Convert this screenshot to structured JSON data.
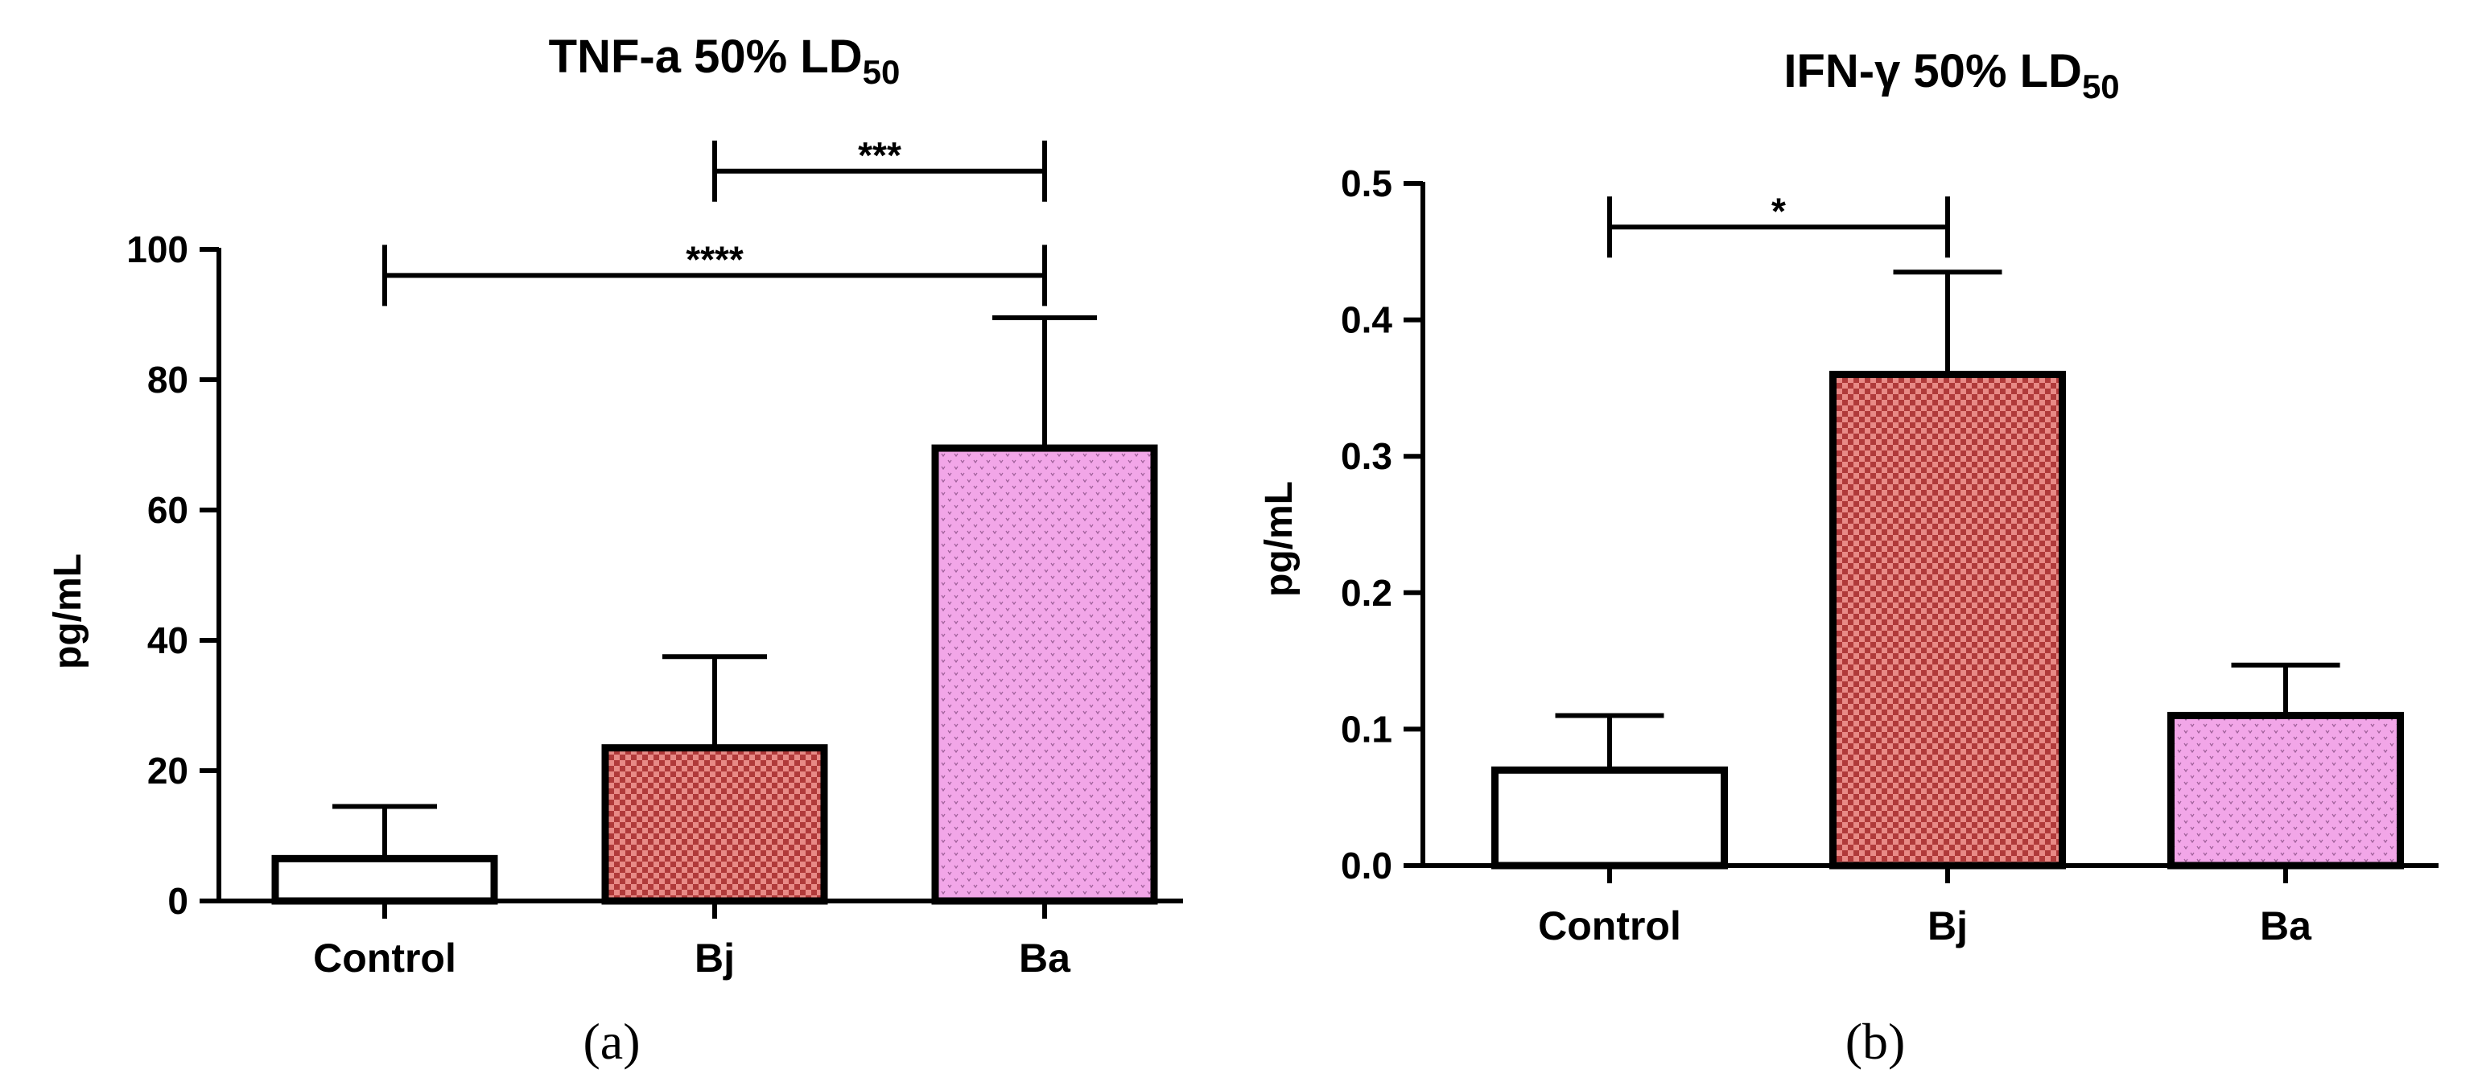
{
  "chart_data": [
    {
      "type": "bar",
      "panel_label": "(a)",
      "title_main": "TNF-a 50% LD",
      "title_sub": "50",
      "ylabel": "pg/mL",
      "xlabel": "",
      "ylim": [
        0,
        100
      ],
      "yticks": [
        "0",
        "20",
        "40",
        "60",
        "80",
        "100"
      ],
      "categories": [
        "Control",
        "Bj",
        "Ba"
      ],
      "values": [
        6.5,
        23.5,
        69.5
      ],
      "errors": [
        8,
        14,
        20
      ],
      "significance": [
        {
          "from": 1,
          "to": 2,
          "label": "***",
          "level": 112
        },
        {
          "from": 0,
          "to": 2,
          "label": "****",
          "level": 96
        }
      ]
    },
    {
      "type": "bar",
      "panel_label": "(b)",
      "title_main": "IFN-γ 50% LD",
      "title_sub": "50",
      "ylabel": "pg/mL",
      "xlabel": "",
      "ylim": [
        0,
        0.5
      ],
      "yticks": [
        "0.0",
        "0.1",
        "0.2",
        "0.3",
        "0.4",
        "0.5"
      ],
      "categories": [
        "Control",
        "Bj",
        "Ba"
      ],
      "values": [
        0.07,
        0.36,
        0.11
      ],
      "errors": [
        0.04,
        0.075,
        0.037
      ],
      "significance": [
        {
          "from": 0,
          "to": 1,
          "label": "*",
          "level": 0.468
        }
      ]
    }
  ],
  "colors": {
    "control_fill": "#ffffff",
    "bj_fill": "#e88a86",
    "bj_pattern": "#b03a3a",
    "ba_fill": "#f2a6e8",
    "ba_pattern": "#9e5f98",
    "axis": "#000000"
  }
}
